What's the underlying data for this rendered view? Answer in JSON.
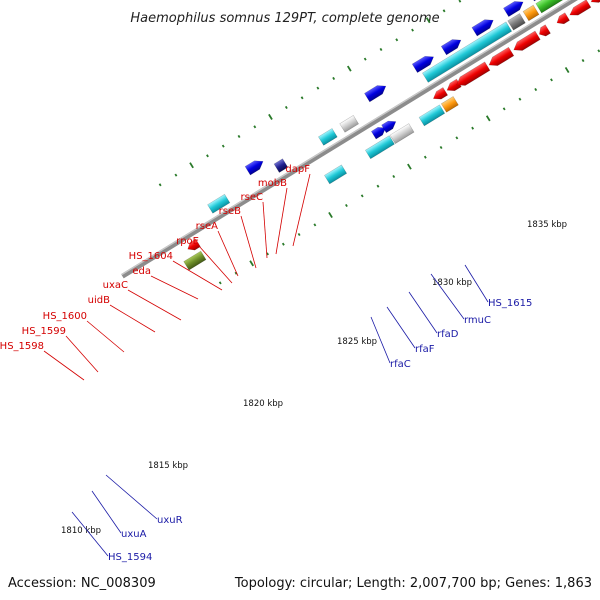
{
  "title": "Haemophilus somnus 129PT, complete genome",
  "footer": {
    "accession": "Accession: NC_008309",
    "summary": "Topology: circular; Length: 2,007,700 bp; Genes: 1,863"
  },
  "tick_labels": [
    "1810 kbp",
    "1815 kbp",
    "1820 kbp",
    "1825 kbp",
    "1830 kbp",
    "1835 kbp"
  ],
  "upper_gene_labels": [
    "HS_1598",
    "HS_1599",
    "HS_1600",
    "uidB",
    "uxaC",
    "eda",
    "HS_1604",
    "rpoE",
    "rseA",
    "rseB",
    "rseC",
    "mobB",
    "dapF"
  ],
  "lower_gene_labels": [
    "HS_1594",
    "uxuA",
    "uxuR",
    "rfaC",
    "rfaF",
    "rfaD",
    "rmuC",
    "HS_1615"
  ],
  "colors": {
    "backbone": "#8a8a8a",
    "forward_gene": "#0000e6",
    "reverse_gene": "#e60000",
    "label_red": "#d40000",
    "label_blue": "#1a1aa6",
    "tick_green": "#2a7a2a"
  }
}
